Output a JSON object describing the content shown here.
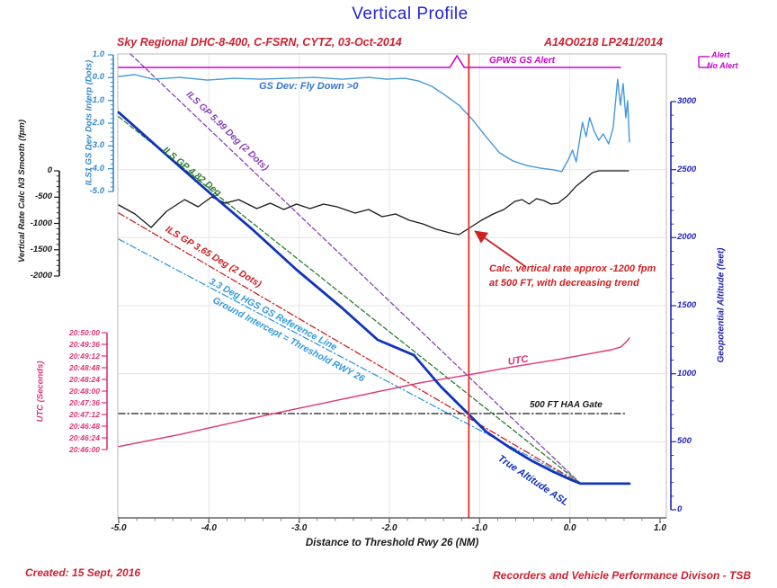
{
  "page": {
    "title": "Vertical Profile",
    "title_color": "#2222dd",
    "header_left": "Sky Regional DHC-8-400, C-FSRN, CYTZ, 03-Oct-2014",
    "header_right": "A14O0218  LP241/2014",
    "header_color": "#cc2233",
    "footer_left": "Created: 15 Sept, 2016",
    "footer_right": "Recorders and Vehicle Performance Divison - TSB",
    "footer_color": "#cc2233"
  },
  "legend": {
    "alert_label": "Alert",
    "no_alert_label": "No Alert",
    "color": "#cc00cc",
    "position": "top-right"
  },
  "chart_data": {
    "type": "line",
    "title": "Vertical Profile",
    "grid": true,
    "x_axis": {
      "label": "Distance to Threshold Rwy 26 (NM)",
      "unit": "NM",
      "range": [
        -5.0,
        1.0
      ],
      "major_ticks": [
        "-5.0",
        "-4.0",
        "-3.0",
        "-2.0",
        "-1.0",
        "0.0",
        "1.0"
      ],
      "minor_step": 0.2
    },
    "y_axes": [
      {
        "id": "dots",
        "label": "ILS1 GS Dev Dots Interp (Dots)",
        "color": "#3388cc",
        "side": "left",
        "range": [
          1.0,
          -5.0
        ],
        "major_ticks": [
          "1.0",
          "0.0",
          "-1.0",
          "-2.0",
          "-3.0",
          "-4.0",
          "-5.0"
        ],
        "minor_step": 0.2
      },
      {
        "id": "fpm",
        "label": "Vertical Rate Calc N3 Smooth (fpm)",
        "color": "#1a1a1a",
        "side": "left",
        "range": [
          0,
          -2000
        ],
        "major_ticks": [
          "0",
          "-500",
          "-1000",
          "-1500",
          "-2000"
        ],
        "minor_step": 100
      },
      {
        "id": "utc",
        "label": "UTC (Seconds)",
        "color": "#dd3377",
        "side": "left",
        "range": [
          "20:50:00",
          "20:46:00"
        ],
        "major_ticks": [
          "20:50:00",
          "20:49:36",
          "20:49:12",
          "20:48:48",
          "20:48:24",
          "20:48:00",
          "20:47:36",
          "20:47:12",
          "20:46:48",
          "20:46:24",
          "20:46:00"
        ]
      },
      {
        "id": "alt",
        "label": "Geopotential Altitude (feet)",
        "color": "#2222bb",
        "side": "right",
        "range": [
          0,
          3000
        ],
        "major_ticks": [
          "3000",
          "2500",
          "2000",
          "1500",
          "1000",
          "500",
          "0"
        ],
        "minor_step": 100
      }
    ],
    "event_line": {
      "nm": -1.12,
      "color": "#e03030"
    },
    "series": [
      {
        "id": "gpws_gs_alert",
        "name": "GPWS GS Alert",
        "yaxis": "alert",
        "color": "#cc00cc",
        "width": 1.6,
        "dash": "solid",
        "points": [
          [
            -5.0,
            0
          ],
          [
            -1.33,
            0
          ],
          [
            -1.25,
            1
          ],
          [
            -1.17,
            0
          ],
          [
            0.56,
            0
          ]
        ]
      },
      {
        "id": "ils_gp_599",
        "name": "ILS GP 5.99 Deg (2 Dots)",
        "yaxis": "alt",
        "color": "#8844bb",
        "width": 1.3,
        "dash": "dash",
        "points": [
          [
            -4.87,
            3350
          ],
          [
            0.12,
            192
          ]
        ]
      },
      {
        "id": "ils_gp_482",
        "name": "ILS GP 4.82 Deg",
        "yaxis": "alt",
        "color": "#2d7d2d",
        "width": 1.3,
        "dash": "dash",
        "points": [
          [
            -5.0,
            2888
          ],
          [
            0.12,
            192
          ]
        ]
      },
      {
        "id": "ils_gp_365",
        "name": "ILS GP 3.65 Deg (2 Dots)",
        "yaxis": "alt",
        "color": "#cc2222",
        "width": 1.3,
        "dash": "dashdot",
        "points": [
          [
            -5.0,
            2181
          ],
          [
            0.12,
            192
          ]
        ]
      },
      {
        "id": "hgs_33_ref",
        "name": "3.3 Deg HGS GS Reference Line, Ground Intercept = Threshold RWY 26",
        "yaxis": "alt",
        "color": "#3399dd",
        "width": 1.3,
        "dash": "dashdot",
        "points": [
          [
            -5.0,
            1989
          ],
          [
            0.12,
            192
          ]
        ]
      },
      {
        "id": "haa_gate_500ft",
        "name": "500 FT HAA Gate",
        "yaxis": "alt",
        "color": "#1a1a1a",
        "width": 1.3,
        "dash": "dashdot",
        "points": [
          [
            -5.0,
            707
          ],
          [
            0.62,
            707
          ]
        ]
      },
      {
        "id": "utc_time",
        "name": "UTC",
        "yaxis": "utc",
        "color": "#dd3377",
        "width": 1.4,
        "dash": "solid",
        "points": [
          [
            -5.0,
            6
          ],
          [
            -4.32,
            31
          ],
          [
            -3.28,
            74
          ],
          [
            -2.33,
            111
          ],
          [
            -1.63,
            138
          ],
          [
            -1.13,
            153
          ],
          [
            -0.63,
            170
          ],
          [
            -0.13,
            185
          ],
          [
            0.26,
            198
          ],
          [
            0.46,
            205
          ],
          [
            0.56,
            210
          ],
          [
            0.62,
            220
          ],
          [
            0.66,
            229
          ]
        ]
      },
      {
        "id": "ils_gs_dev",
        "name": "GS Dev: Fly Down >0",
        "yaxis": "dots",
        "color": "#4499dd",
        "width": 1.4,
        "dash": "solid",
        "points": [
          [
            -5.0,
            0.05
          ],
          [
            -4.82,
            0.13
          ],
          [
            -4.62,
            -0.07
          ],
          [
            -4.32,
            0.01
          ],
          [
            -4.02,
            -0.11
          ],
          [
            -3.72,
            -0.03
          ],
          [
            -3.43,
            -0.07
          ],
          [
            -3.13,
            -0.03
          ],
          [
            -2.83,
            0.01
          ],
          [
            -2.53,
            -0.07
          ],
          [
            -2.23,
            0.01
          ],
          [
            -2.03,
            -0.07
          ],
          [
            -1.83,
            -0.03
          ],
          [
            -1.68,
            -0.14
          ],
          [
            -1.53,
            -0.38
          ],
          [
            -1.38,
            -0.78
          ],
          [
            -1.23,
            -1.21
          ],
          [
            -1.08,
            -1.84
          ],
          [
            -0.93,
            -2.59
          ],
          [
            -0.78,
            -3.3
          ],
          [
            -0.63,
            -3.66
          ],
          [
            -0.48,
            -3.86
          ],
          [
            -0.33,
            -3.97
          ],
          [
            -0.18,
            -4.05
          ],
          [
            -0.09,
            -4.13
          ],
          [
            -0.02,
            -3.62
          ],
          [
            0.03,
            -3.18
          ],
          [
            0.07,
            -3.7
          ],
          [
            0.14,
            -1.96
          ],
          [
            0.18,
            -2.59
          ],
          [
            0.22,
            -1.76
          ],
          [
            0.27,
            -2.36
          ],
          [
            0.32,
            -2.75
          ],
          [
            0.37,
            -2.47
          ],
          [
            0.43,
            -2.91
          ],
          [
            0.48,
            -2.2
          ],
          [
            0.53,
            -0.07
          ],
          [
            0.56,
            -1.21
          ],
          [
            0.59,
            -0.26
          ],
          [
            0.62,
            -1.76
          ],
          [
            0.64,
            -1.01
          ],
          [
            0.66,
            -2.83
          ]
        ]
      },
      {
        "id": "vertical_rate",
        "name": "Vertical Rate Calc N3 Smooth",
        "yaxis": "fpm",
        "color": "#1a1a1a",
        "width": 1.3,
        "dash": "solid",
        "points": [
          [
            -5.0,
            -650
          ],
          [
            -4.82,
            -821
          ],
          [
            -4.64,
            -1077
          ],
          [
            -4.47,
            -769
          ],
          [
            -4.27,
            -547
          ],
          [
            -4.12,
            -684
          ],
          [
            -3.97,
            -496
          ],
          [
            -3.82,
            -615
          ],
          [
            -3.67,
            -547
          ],
          [
            -3.47,
            -718
          ],
          [
            -3.32,
            -615
          ],
          [
            -3.17,
            -735
          ],
          [
            -3.03,
            -632
          ],
          [
            -2.88,
            -718
          ],
          [
            -2.73,
            -632
          ],
          [
            -2.58,
            -684
          ],
          [
            -2.38,
            -803
          ],
          [
            -2.23,
            -735
          ],
          [
            -2.08,
            -872
          ],
          [
            -1.93,
            -821
          ],
          [
            -1.78,
            -940
          ],
          [
            -1.63,
            -1009
          ],
          [
            -1.48,
            -1111
          ],
          [
            -1.33,
            -1179
          ],
          [
            -1.23,
            -1214
          ],
          [
            -1.12,
            -1094
          ],
          [
            -0.98,
            -940
          ],
          [
            -0.85,
            -821
          ],
          [
            -0.73,
            -735
          ],
          [
            -0.61,
            -581
          ],
          [
            -0.53,
            -547
          ],
          [
            -0.45,
            -632
          ],
          [
            -0.37,
            -530
          ],
          [
            -0.29,
            -564
          ],
          [
            -0.21,
            -632
          ],
          [
            -0.13,
            -615
          ],
          [
            -0.03,
            -479
          ],
          [
            0.07,
            -291
          ],
          [
            0.17,
            -154
          ],
          [
            0.25,
            -34
          ],
          [
            0.32,
            0
          ],
          [
            0.65,
            0
          ]
        ]
      },
      {
        "id": "true_altitude",
        "name": "True Altitude ASL",
        "yaxis": "alt",
        "color": "#1133bb",
        "width": 2.8,
        "dash": "solid",
        "points": [
          [
            -5.0,
            2921
          ],
          [
            -4.52,
            2637
          ],
          [
            -4.02,
            2346
          ],
          [
            -3.52,
            2062
          ],
          [
            -3.03,
            1764
          ],
          [
            -2.53,
            1487
          ],
          [
            -2.13,
            1249
          ],
          [
            -1.73,
            1137
          ],
          [
            -1.43,
            905
          ],
          [
            -1.18,
            740
          ],
          [
            -0.93,
            575
          ],
          [
            -0.68,
            463
          ],
          [
            -0.43,
            363
          ],
          [
            -0.18,
            278
          ],
          [
            0.02,
            218
          ],
          [
            0.12,
            192
          ],
          [
            0.66,
            192
          ]
        ]
      }
    ],
    "annotations": {
      "gpws_gs_alert": {
        "text": "GPWS GS Alert",
        "color": "#cc00cc"
      },
      "gs_dev_note": {
        "text": "GS Dev: Fly Down >0",
        "color": "#3377cc"
      },
      "ils_599": {
        "text": "ILS GP 5.99 Deg (2 Dots)",
        "color": "#8844bb"
      },
      "ils_482": {
        "text": "ILS GP 4.82 Deg",
        "color": "#2d7d2d"
      },
      "ils_365": {
        "text": "ILS GP 3.65 Deg (2 Dots)",
        "color": "#cc2222"
      },
      "hgs_line1": {
        "text": "3.3 Deg HGS GS Reference Line",
        "color": "#3399dd"
      },
      "hgs_line2": {
        "text": "Ground Intercept = Threshold RWY 26",
        "color": "#3399dd"
      },
      "utc_curve": {
        "text": "UTC",
        "color": "#dd3377"
      },
      "haa_gate": {
        "text": "500 FT HAA Gate",
        "color": "#1a1a1a"
      },
      "true_alt": {
        "text": "True Altitude ASL",
        "color": "#1133bb"
      },
      "note1": {
        "text": "Calc. vertical rate approx -1200 fpm",
        "color": "#cc2222"
      },
      "note2": {
        "text": "at 500 FT, with decreasing trend",
        "color": "#cc2222"
      }
    }
  }
}
